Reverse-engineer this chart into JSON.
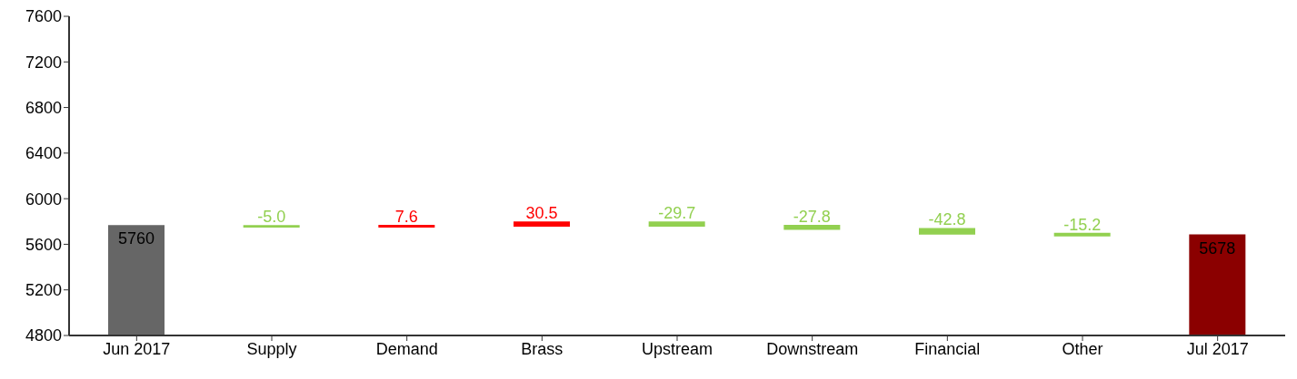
{
  "chart_data": {
    "type": "bar",
    "categories": [
      "Jun 2017",
      "Supply",
      "Demand",
      "Brass",
      "Upstream",
      "Downstream",
      "Financial",
      "Other",
      "Jul 2017"
    ],
    "values": [
      5760,
      -5.0,
      7.6,
      30.5,
      -29.7,
      -27.8,
      -42.8,
      -15.2,
      5678
    ],
    "base": [
      null,
      5760,
      5755,
      5762.6,
      5793.1,
      5763.4,
      5735.6,
      5692.8,
      null
    ],
    "colors": [
      "#666666",
      "#92d050",
      "#ff0000",
      "#ff0000",
      "#92d050",
      "#92d050",
      "#92d050",
      "#92d050",
      "#8b0000"
    ],
    "value_labels": [
      "5760",
      "-5.0",
      "7.6",
      "30.5",
      "-29.7",
      "-27.8",
      "-42.8",
      "-15.2",
      "5678"
    ],
    "ylim": [
      4800,
      7600
    ],
    "yticks": [
      4800,
      5200,
      5600,
      6000,
      6400,
      6800,
      7200,
      7600
    ],
    "grid": false,
    "legend": false
  }
}
